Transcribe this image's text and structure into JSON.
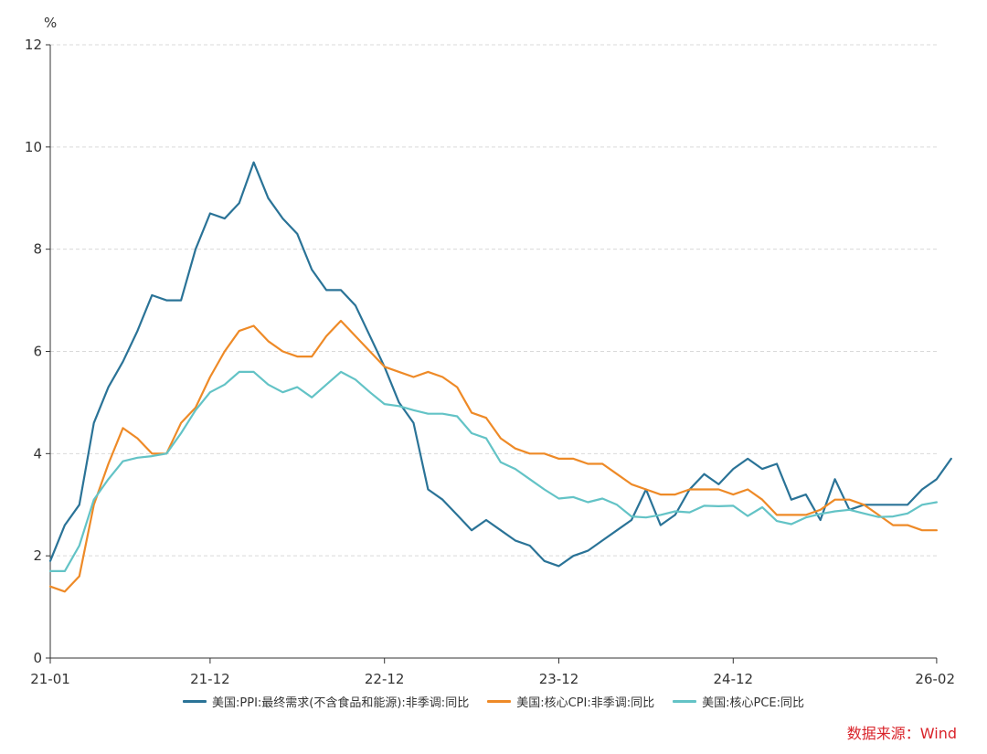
{
  "chart_data": {
    "type": "line",
    "unit_label": "%",
    "x_tick_labels": [
      "21-01",
      "21-12",
      "22-12",
      "23-12",
      "24-12",
      "26-02"
    ],
    "x_start": "2021-01",
    "y_ticks": [
      0,
      2,
      4,
      6,
      8,
      10,
      12
    ],
    "ylim": [
      0,
      12
    ],
    "grid": true,
    "legend_position": "bottom",
    "series": [
      {
        "name": "美国:PPI:最终需求(不含食品和能源):非季调:同比",
        "color": "#2a7397",
        "values": [
          1.9,
          2.6,
          3.0,
          4.6,
          5.3,
          5.8,
          6.4,
          7.1,
          7.0,
          7.0,
          8.0,
          8.7,
          8.6,
          8.9,
          9.7,
          9.0,
          8.6,
          8.3,
          7.6,
          7.2,
          7.2,
          6.9,
          6.3,
          5.7,
          5.0,
          4.6,
          3.3,
          3.1,
          2.8,
          2.5,
          2.7,
          2.5,
          2.3,
          2.2,
          1.9,
          1.8,
          2.0,
          2.1,
          2.3,
          2.5,
          2.7,
          3.3,
          2.6,
          2.8,
          3.3,
          3.6,
          3.4,
          3.7,
          3.9,
          3.7,
          3.8,
          3.1,
          3.2,
          2.7,
          3.5,
          2.9,
          3.0,
          3.0,
          3.0,
          3.0,
          3.3,
          3.5,
          3.9
        ]
      },
      {
        "name": "美国:核心CPI:非季调:同比",
        "color": "#ee8a27",
        "values": [
          1.4,
          1.3,
          1.6,
          3.0,
          3.8,
          4.5,
          4.3,
          4.0,
          4.0,
          4.6,
          4.9,
          5.5,
          6.0,
          6.4,
          6.5,
          6.2,
          6.0,
          5.9,
          5.9,
          6.3,
          6.6,
          6.3,
          6.0,
          5.7,
          5.6,
          5.5,
          5.6,
          5.5,
          5.3,
          4.8,
          4.7,
          4.3,
          4.1,
          4.0,
          4.0,
          3.9,
          3.9,
          3.8,
          3.8,
          3.6,
          3.4,
          3.3,
          3.2,
          3.2,
          3.3,
          3.3,
          3.3,
          3.2,
          3.3,
          3.1,
          2.8,
          2.8,
          2.8,
          2.9,
          3.1,
          3.1,
          3.0,
          2.8,
          2.6,
          2.6,
          2.5,
          2.5
        ]
      },
      {
        "name": "美国:核心PCE:同比",
        "color": "#63c3c6",
        "values": [
          1.7,
          1.7,
          2.2,
          3.1,
          3.5,
          3.85,
          3.92,
          3.95,
          4.0,
          4.4,
          4.85,
          5.2,
          5.35,
          5.6,
          5.6,
          5.35,
          5.2,
          5.3,
          5.1,
          5.35,
          5.6,
          5.45,
          5.2,
          4.97,
          4.93,
          4.85,
          4.78,
          4.78,
          4.73,
          4.4,
          4.3,
          3.83,
          3.7,
          3.5,
          3.3,
          3.12,
          3.15,
          3.05,
          3.12,
          3.0,
          2.77,
          2.75,
          2.8,
          2.87,
          2.85,
          2.98,
          2.97,
          2.98,
          2.78,
          2.95,
          2.68,
          2.62,
          2.75,
          2.82,
          2.87,
          2.9,
          2.83,
          2.76,
          2.77,
          2.83,
          3.0,
          3.05
        ]
      }
    ]
  },
  "source_note": "数据来源：Wind",
  "source_color": "#d9232a"
}
